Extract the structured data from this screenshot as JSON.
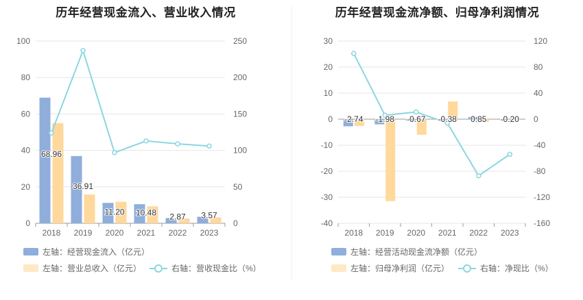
{
  "colors": {
    "bar_primary": "#8faedb",
    "bar_secondary": "#ffd89c",
    "line": "#8bd6df",
    "grid": "#e6e6e6",
    "axis": "#999999"
  },
  "chart_data": [
    {
      "type": "bar",
      "title": "历年经营现金流入、营业收入情况",
      "categories": [
        "2018",
        "2019",
        "2020",
        "2021",
        "2022",
        "2023"
      ],
      "ylim_left": [
        0,
        100
      ],
      "yticks_left": [
        "0",
        "20",
        "40",
        "60",
        "80",
        "100"
      ],
      "ylim_right": [
        0,
        250
      ],
      "yticks_right": [
        "0",
        "50",
        "100",
        "150",
        "200",
        "250"
      ],
      "series": [
        {
          "name": "左轴：经营现金流入（亿元）",
          "axis": "left",
          "kind": "bar",
          "color": "#8faedb",
          "values": [
            68.96,
            36.91,
            11.2,
            10.48,
            2.87,
            3.57
          ],
          "labels": [
            "68.96",
            "36.91",
            "11.20",
            "10.48",
            "2.87",
            "3.57"
          ]
        },
        {
          "name": "左轴：营业总收入（亿元）",
          "axis": "left",
          "kind": "bar",
          "color": "#ffd89c",
          "values": [
            55.0,
            15.8,
            11.8,
            9.3,
            2.7,
            3.3
          ]
        },
        {
          "name": "右轴：营收现金比（%）",
          "axis": "right",
          "kind": "line",
          "color": "#8bd6df",
          "values": [
            124,
            237,
            97,
            113,
            109,
            106
          ]
        }
      ],
      "grid": true,
      "legend_position": "bottom-left"
    },
    {
      "type": "bar",
      "title": "历年经营现金流净额、归母净利润情况",
      "categories": [
        "2018",
        "2019",
        "2020",
        "2021",
        "2022",
        "2023"
      ],
      "ylim_left": [
        -40,
        30
      ],
      "yticks_left": [
        "-40",
        "-30",
        "-20",
        "-10",
        "0",
        "10",
        "20",
        "30"
      ],
      "ylim_right": [
        -160,
        120
      ],
      "yticks_right": [
        "-160",
        "-120",
        "-80",
        "-40",
        "0",
        "40",
        "80",
        "120"
      ],
      "series": [
        {
          "name": "左轴：经营活动现金流净额（亿元）",
          "axis": "left",
          "kind": "bar",
          "color": "#8faedb",
          "values": [
            -2.74,
            -1.98,
            -0.67,
            -0.38,
            0.85,
            -0.2
          ],
          "labels": [
            "-2.74",
            "-1.98",
            "-0.67",
            "-0.38",
            "0.85",
            "-0.20"
          ]
        },
        {
          "name": "左轴：归母净利润（亿元）",
          "axis": "left",
          "kind": "bar",
          "color": "#ffd89c",
          "values": [
            -2.6,
            -31.5,
            -6.0,
            6.8,
            -1.0,
            -0.3
          ]
        },
        {
          "name": "右轴：净现比（%）",
          "axis": "right",
          "kind": "line",
          "color": "#8bd6df",
          "values": [
            101,
            6,
            11,
            -6,
            -87,
            -54
          ]
        }
      ],
      "grid": true,
      "legend_position": "bottom-left"
    }
  ]
}
